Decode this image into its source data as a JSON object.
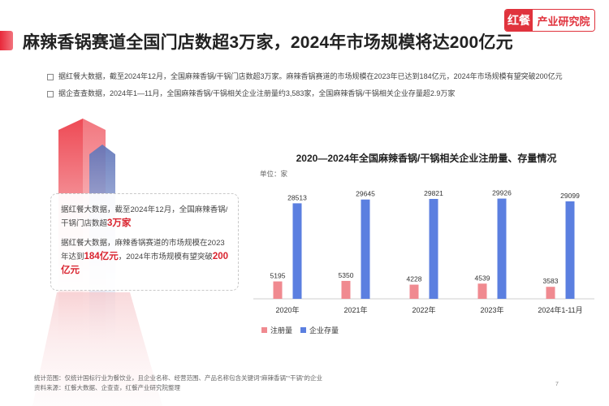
{
  "header": {
    "title": "麻辣香锅赛道全国门店数超3万家，2024年市场规模将达200亿元",
    "logo_mark": "红餐",
    "logo_text": "产业研究院"
  },
  "bullets": [
    "据红餐大数据，截至2024年12月，全国麻辣香锅/干锅门店数超3万家。麻辣香锅赛道的市场规模在2023年已达到184亿元，2024年市场规模有望突破200亿元",
    "据企查查数据，2024年1—11月，全国麻辣香锅/干锅相关企业注册量约3,583家，全国麻辣香锅/干锅相关企业存量超2.9万家"
  ],
  "callout": {
    "p1_a": "据红餐大数据，截至2024年12月，全国麻辣香锅/干锅门店数超",
    "p1_hl": "3万家",
    "p2_a": "据红餐大数据，麻辣香锅赛道的市场规模在2023年达到",
    "p2_hl1": "184亿元",
    "p2_b": "，2024年市场规模有望突破",
    "p2_hl2": "200亿元"
  },
  "chart_data": {
    "type": "bar",
    "title": "2020—2024年全国麻辣香锅/干锅相关企业注册量、存量情况",
    "unit_label": "单位：家",
    "categories": [
      "2020年",
      "2021年",
      "2022年",
      "2023年",
      "2024年1-11月"
    ],
    "series": [
      {
        "name": "注册量",
        "values": [
          5195,
          5350,
          4228,
          4539,
          3583
        ],
        "color": "#f08a90"
      },
      {
        "name": "企业存量",
        "values": [
          28513,
          29645,
          29821,
          29926,
          29099
        ],
        "color": "#5b7fe0"
      }
    ],
    "ylim": [
      0,
      32000
    ],
    "legend_position": "bottom-left",
    "grid": false
  },
  "footer": {
    "line1": "统计范围：仅统计国标行业为餐饮业，且企业名称、经营范围、产品名称包含关键词“麻辣香锅”“干锅”的企业",
    "line2": "资料来源：红餐大数据、企查查，红餐产业研究院整理",
    "page_number": "7"
  }
}
